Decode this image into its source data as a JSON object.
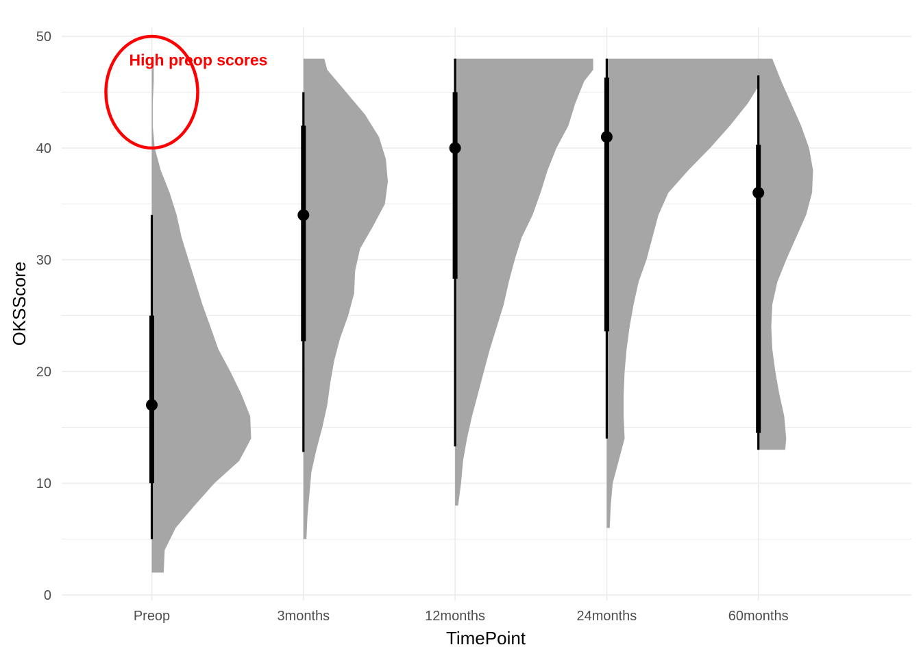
{
  "chart_data": {
    "type": "halfeye",
    "xlabel": "TimePoint",
    "ylabel": "OKSScore",
    "ylim": [
      0,
      50
    ],
    "yticks": [
      0,
      10,
      20,
      30,
      40,
      50
    ],
    "grid": true,
    "colors": {
      "density_fill": "#a6a6a6",
      "interval": "#000000",
      "grid": "#ebebeb",
      "annotation": "#ff0000"
    },
    "categories": [
      "Preop",
      "3months",
      "12months",
      "24months",
      "60months"
    ],
    "series": [
      {
        "category": "Preop",
        "point": 17,
        "interval_66": [
          10,
          25
        ],
        "interval_95": [
          5,
          34
        ],
        "density_range": [
          2,
          48
        ],
        "density_width": [
          [
            2,
            0.12
          ],
          [
            4,
            0.13
          ],
          [
            6,
            0.24
          ],
          [
            8,
            0.43
          ],
          [
            10,
            0.63
          ],
          [
            12,
            0.88
          ],
          [
            14,
            1.0
          ],
          [
            16,
            0.99
          ],
          [
            18,
            0.9
          ],
          [
            20,
            0.79
          ],
          [
            22,
            0.67
          ],
          [
            24,
            0.59
          ],
          [
            26,
            0.51
          ],
          [
            28,
            0.44
          ],
          [
            30,
            0.37
          ],
          [
            32,
            0.3
          ],
          [
            34,
            0.25
          ],
          [
            36,
            0.18
          ],
          [
            38,
            0.09
          ],
          [
            40,
            0.03
          ],
          [
            42,
            0.01
          ],
          [
            44,
            0.01
          ],
          [
            46,
            0.02
          ],
          [
            48,
            0.02
          ]
        ]
      },
      {
        "category": "3months",
        "point": 34,
        "interval_66": [
          22.7,
          42
        ],
        "interval_95": [
          12.8,
          45
        ],
        "density_range": [
          5,
          48
        ],
        "density_width": [
          [
            5,
            0.03
          ],
          [
            7,
            0.04
          ],
          [
            9,
            0.06
          ],
          [
            11,
            0.08
          ],
          [
            13,
            0.13
          ],
          [
            15,
            0.19
          ],
          [
            17,
            0.24
          ],
          [
            19,
            0.27
          ],
          [
            21,
            0.31
          ],
          [
            23,
            0.37
          ],
          [
            25,
            0.45
          ],
          [
            27,
            0.51
          ],
          [
            29,
            0.52
          ],
          [
            31,
            0.57
          ],
          [
            33,
            0.7
          ],
          [
            35,
            0.82
          ],
          [
            37,
            0.85
          ],
          [
            39,
            0.83
          ],
          [
            41,
            0.76
          ],
          [
            43,
            0.62
          ],
          [
            45,
            0.43
          ],
          [
            47,
            0.24
          ],
          [
            48,
            0.21
          ]
        ]
      },
      {
        "category": "12months",
        "point": 40,
        "interval_66": [
          28.3,
          45
        ],
        "interval_95": [
          13.3,
          48
        ],
        "density_range": [
          8,
          48
        ],
        "density_width": [
          [
            8,
            0.03
          ],
          [
            10,
            0.06
          ],
          [
            12,
            0.08
          ],
          [
            14,
            0.12
          ],
          [
            16,
            0.17
          ],
          [
            18,
            0.23
          ],
          [
            20,
            0.29
          ],
          [
            22,
            0.35
          ],
          [
            24,
            0.42
          ],
          [
            26,
            0.49
          ],
          [
            28,
            0.54
          ],
          [
            30,
            0.6
          ],
          [
            32,
            0.67
          ],
          [
            34,
            0.78
          ],
          [
            36,
            0.86
          ],
          [
            38,
            0.93
          ],
          [
            40,
            1.02
          ],
          [
            42,
            1.14
          ],
          [
            44,
            1.21
          ],
          [
            46,
            1.3
          ],
          [
            47,
            1.39
          ],
          [
            48,
            1.39
          ]
        ]
      },
      {
        "category": "24months",
        "point": 41,
        "interval_66": [
          23.6,
          46.3
        ],
        "interval_95": [
          14,
          48
        ],
        "density_range": [
          6,
          48
        ],
        "density_width": [
          [
            6,
            0.03
          ],
          [
            8,
            0.04
          ],
          [
            10,
            0.06
          ],
          [
            12,
            0.12
          ],
          [
            14,
            0.18
          ],
          [
            16,
            0.17
          ],
          [
            18,
            0.17
          ],
          [
            20,
            0.18
          ],
          [
            22,
            0.2
          ],
          [
            24,
            0.23
          ],
          [
            26,
            0.27
          ],
          [
            28,
            0.32
          ],
          [
            30,
            0.4
          ],
          [
            32,
            0.46
          ],
          [
            34,
            0.52
          ],
          [
            36,
            0.62
          ],
          [
            38,
            0.82
          ],
          [
            40,
            1.04
          ],
          [
            42,
            1.24
          ],
          [
            44,
            1.42
          ],
          [
            46,
            1.56
          ],
          [
            47,
            1.62
          ],
          [
            48,
            1.56
          ]
        ]
      },
      {
        "category": "60months",
        "point": 36,
        "interval_66": [
          14.5,
          40.3
        ],
        "interval_95": [
          13,
          46.5
        ],
        "density_range": [
          13,
          48
        ],
        "density_width": [
          [
            13,
            0.27
          ],
          [
            14,
            0.28
          ],
          [
            16,
            0.26
          ],
          [
            18,
            0.21
          ],
          [
            20,
            0.17
          ],
          [
            22,
            0.14
          ],
          [
            24,
            0.13
          ],
          [
            26,
            0.14
          ],
          [
            28,
            0.19
          ],
          [
            30,
            0.28
          ],
          [
            32,
            0.38
          ],
          [
            34,
            0.48
          ],
          [
            36,
            0.54
          ],
          [
            38,
            0.55
          ],
          [
            40,
            0.51
          ],
          [
            42,
            0.43
          ],
          [
            44,
            0.33
          ],
          [
            46,
            0.23
          ],
          [
            48,
            0.14
          ]
        ]
      }
    ],
    "annotations": [
      {
        "text": "High preop scores",
        "category": "Preop",
        "y_center": 45,
        "y_radius": 5
      }
    ]
  }
}
